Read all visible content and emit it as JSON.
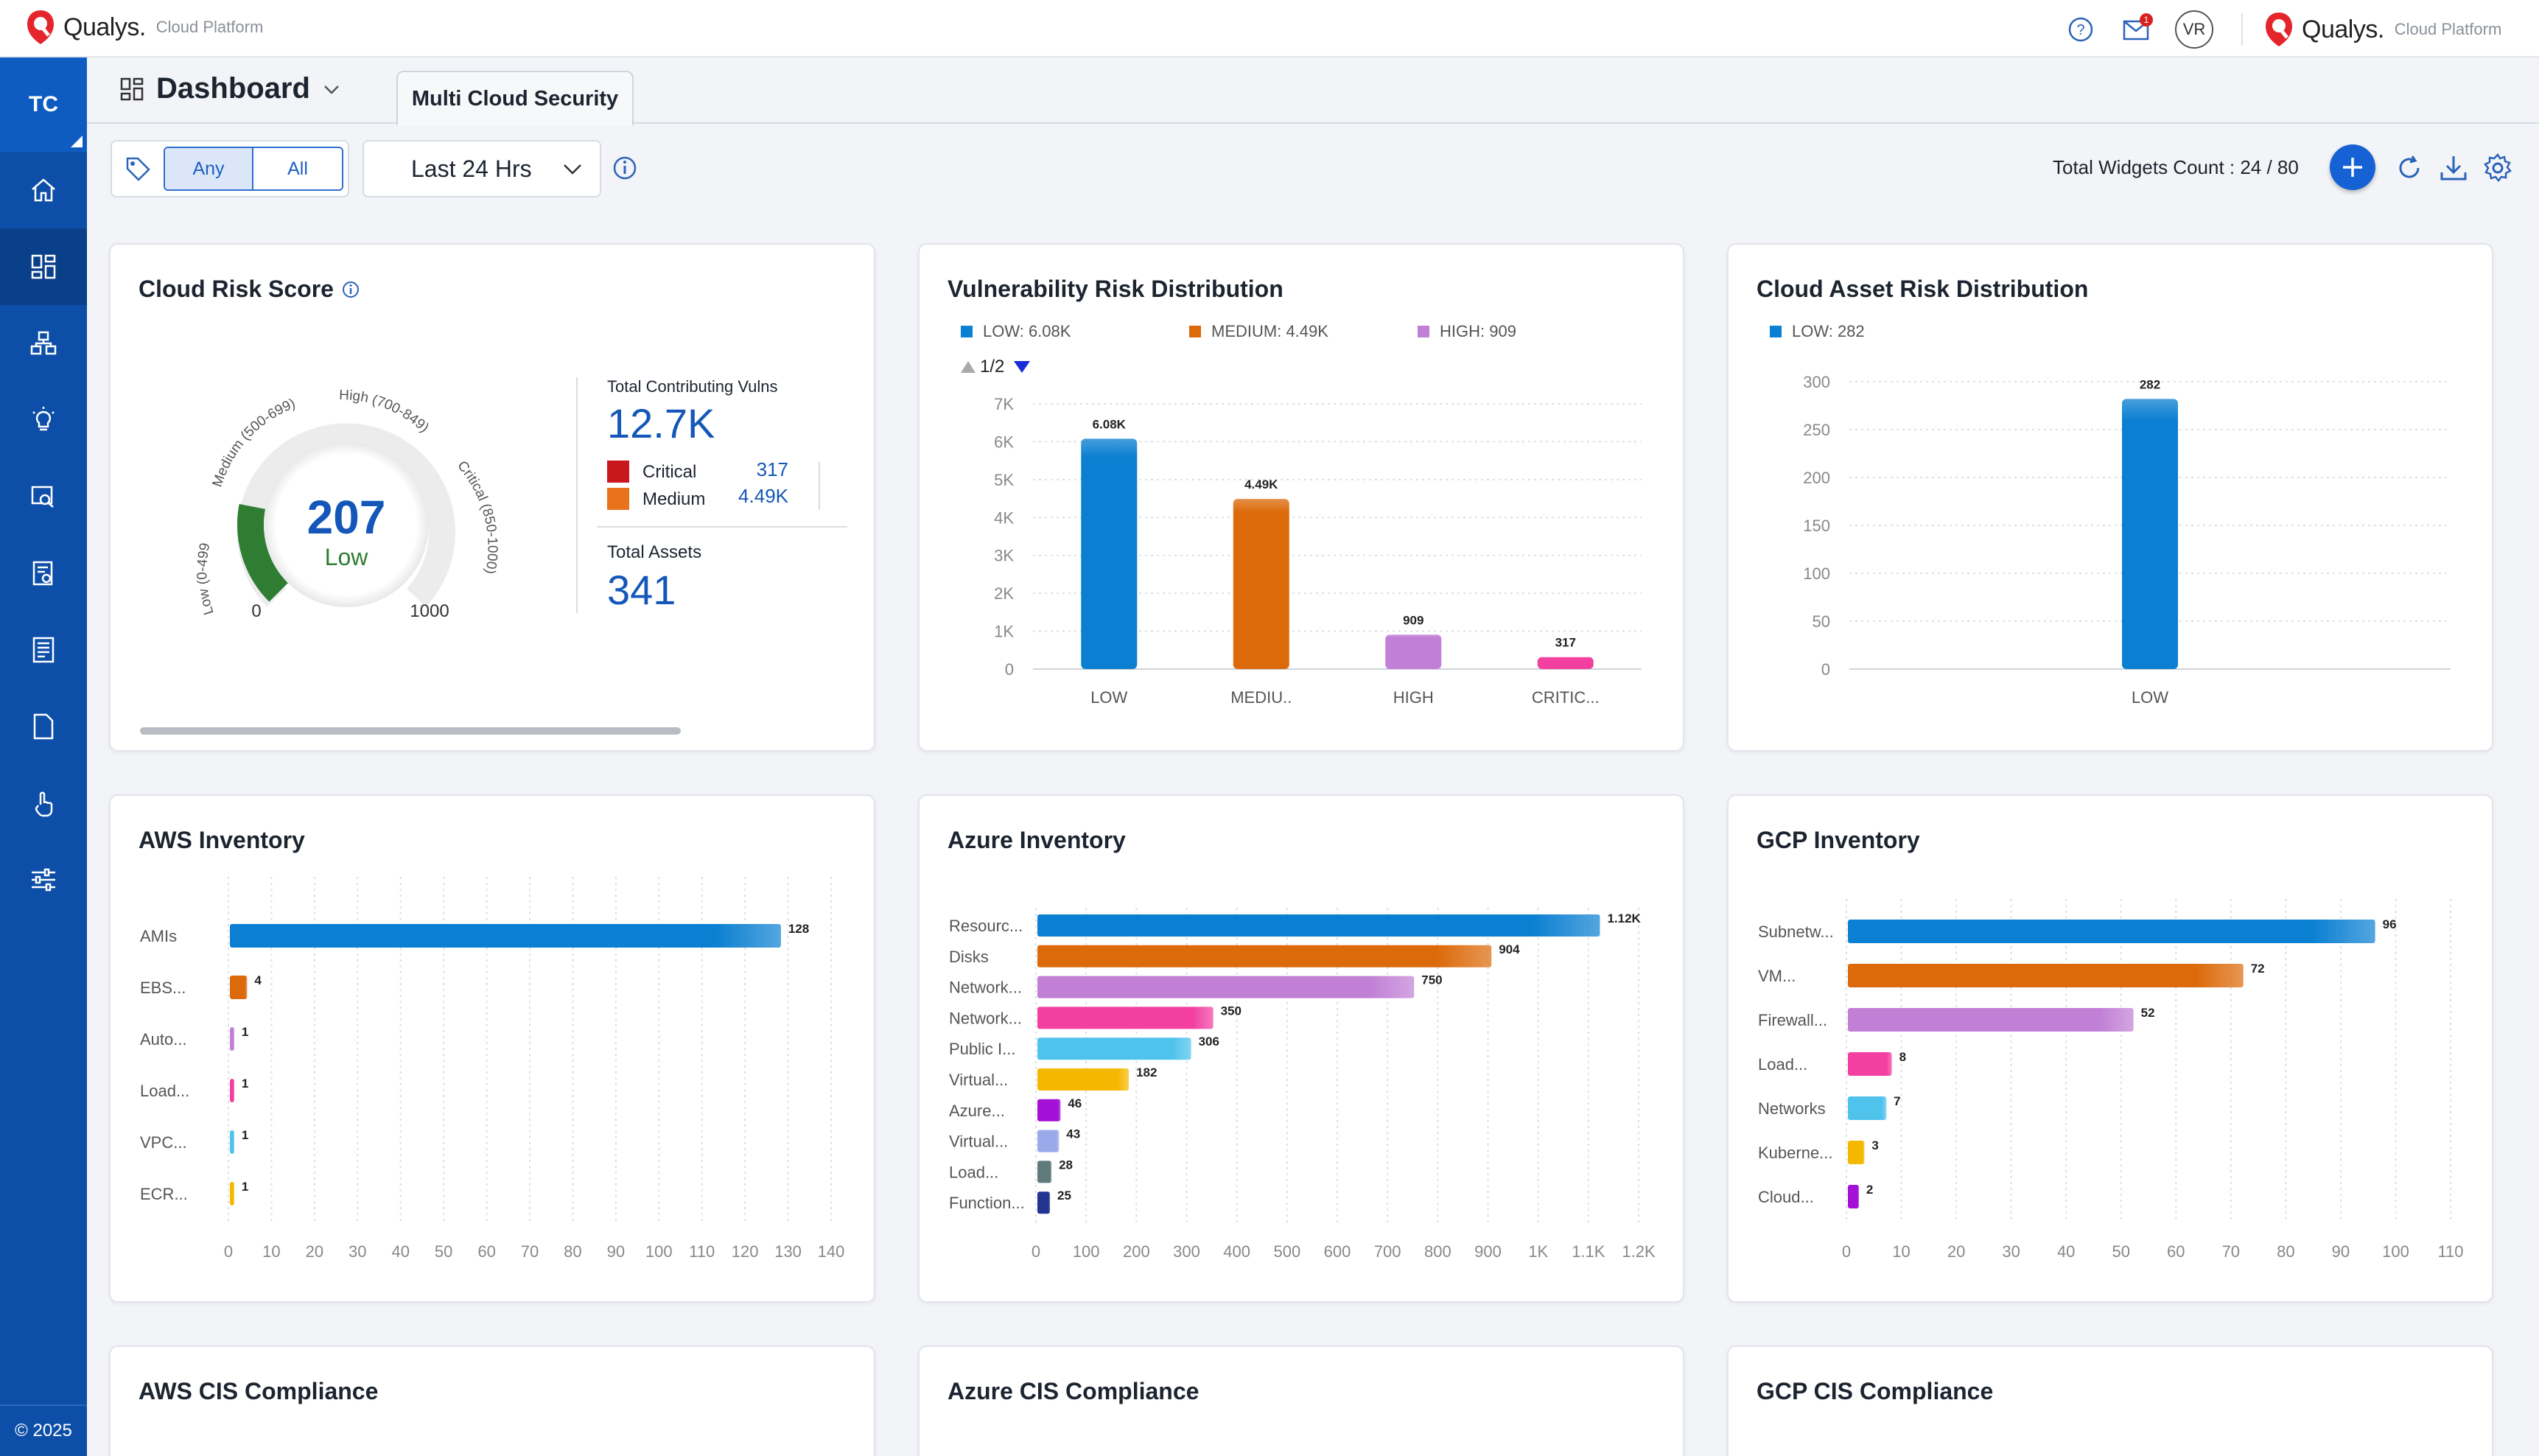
{
  "brand": {
    "name": "Qualys.",
    "sub": "Cloud Platform"
  },
  "topbar": {
    "user_initials": "VR",
    "mail_badge": "1"
  },
  "sidebar": {
    "org": "TC",
    "items": [
      "home-icon",
      "dashboard-icon",
      "assets-icon",
      "insights-icon",
      "search-report-icon",
      "policy-icon",
      "list-icon",
      "document-icon",
      "touch-icon",
      "settings-sliders-icon"
    ],
    "footer": "© 2025"
  },
  "header": {
    "title": "Dashboard",
    "tab": "Multi Cloud Security"
  },
  "filters": {
    "any": "Any",
    "all": "All",
    "time": "Last 24 Hrs"
  },
  "widgets_count": "Total Widgets Count : 24 / 80",
  "colors": {
    "low": "#0b7fd1",
    "medium": "#dc6a0b",
    "high": "#c17fd6",
    "critical": "#f23fa0",
    "pink": "#f23fa0",
    "cyan": "#4fc3ec",
    "yellow": "#f5b800",
    "purple": "#a310d6",
    "lavender": "#9aa9ea",
    "slate": "#5f7a7a",
    "navy": "#23338f",
    "accent": "#1662d4"
  },
  "risk_score": {
    "title": "Cloud Risk Score",
    "score": "207",
    "rating": "Low",
    "gauge_min": "0",
    "gauge_max": "1000",
    "score_value": 207,
    "ranges": [
      "Low (0-499)",
      "Medium (500-699)",
      "High (700-849)",
      "Critical (850-1000)"
    ],
    "vulns_label": "Total Contributing Vulns",
    "vulns_total": "12.7K",
    "critical_label": "Critical",
    "critical_value": "317",
    "medium_label": "Medium",
    "medium_value": "4.49K",
    "assets_label": "Total Assets",
    "assets_total": "341"
  },
  "chart_data": [
    {
      "id": "vuln",
      "type": "bar",
      "title": "Vulnerability Risk Distribution",
      "legend": [
        "LOW: 6.08K",
        "MEDIUM: 4.49K",
        "HIGH: 909"
      ],
      "pager": "1/2",
      "categories": [
        "LOW",
        "MEDIU..",
        "HIGH",
        "CRITIC..."
      ],
      "values": [
        6080,
        4490,
        909,
        317
      ],
      "labels": [
        "6.08K",
        "4.49K",
        "909",
        "317"
      ],
      "ylim": [
        0,
        7000
      ],
      "yticks": [
        "0",
        "1K",
        "2K",
        "3K",
        "4K",
        "5K",
        "6K",
        "7K"
      ],
      "colors": [
        "#0b7fd1",
        "#dc6a0b",
        "#c17fd6",
        "#f23fa0"
      ]
    },
    {
      "id": "asset",
      "type": "bar",
      "title": "Cloud Asset Risk Distribution",
      "legend": [
        "LOW: 282"
      ],
      "categories": [
        "LOW"
      ],
      "values": [
        282
      ],
      "labels": [
        "282"
      ],
      "ylim": [
        0,
        300
      ],
      "yticks": [
        "0",
        "50",
        "100",
        "150",
        "200",
        "250",
        "300"
      ],
      "colors": [
        "#0b7fd1"
      ]
    },
    {
      "id": "aws",
      "type": "bar",
      "orientation": "horizontal",
      "title": "AWS Inventory",
      "categories": [
        "AMIs",
        "EBS...",
        "Auto...",
        "Load...",
        "VPC...",
        "ECR..."
      ],
      "values": [
        128,
        4,
        1,
        1,
        1,
        1
      ],
      "labels": [
        "128",
        "4",
        "1",
        "1",
        "1",
        "1"
      ],
      "xlim": [
        0,
        140
      ],
      "xticks": [
        "0",
        "10",
        "20",
        "30",
        "40",
        "50",
        "60",
        "70",
        "80",
        "90",
        "100",
        "110",
        "120",
        "130",
        "140"
      ],
      "colors": [
        "#0b7fd1",
        "#dc6a0b",
        "#c17fd6",
        "#f23fa0",
        "#4fc3ec",
        "#f5b800"
      ]
    },
    {
      "id": "azure",
      "type": "bar",
      "orientation": "horizontal",
      "title": "Azure Inventory",
      "categories": [
        "Resourc...",
        "Disks",
        "Network...",
        "Network...",
        "Public I...",
        "Virtual...",
        "Azure...",
        "Virtual...",
        "Load...",
        "Function..."
      ],
      "values": [
        1120,
        904,
        750,
        350,
        306,
        182,
        46,
        43,
        28,
        25
      ],
      "labels": [
        "1.12K",
        "904",
        "750",
        "350",
        "306",
        "182",
        "46",
        "43",
        "28",
        "25"
      ],
      "xlim": [
        0,
        1200
      ],
      "xticks": [
        "0",
        "100",
        "200",
        "300",
        "400",
        "500",
        "600",
        "700",
        "800",
        "900",
        "1K",
        "1.1K",
        "1.2K"
      ],
      "colors": [
        "#0b7fd1",
        "#dc6a0b",
        "#c17fd6",
        "#f23fa0",
        "#4fc3ec",
        "#f5b800",
        "#a310d6",
        "#9aa9ea",
        "#5f7a7a",
        "#23338f"
      ]
    },
    {
      "id": "gcp",
      "type": "bar",
      "orientation": "horizontal",
      "title": "GCP Inventory",
      "categories": [
        "Subnetw...",
        "VM...",
        "Firewall...",
        "Load...",
        "Networks",
        "Kuberne...",
        "Cloud..."
      ],
      "values": [
        96,
        72,
        52,
        8,
        7,
        3,
        2
      ],
      "labels": [
        "96",
        "72",
        "52",
        "8",
        "7",
        "3",
        "2"
      ],
      "xlim": [
        0,
        110
      ],
      "xticks": [
        "0",
        "10",
        "20",
        "30",
        "40",
        "50",
        "60",
        "70",
        "80",
        "90",
        "100",
        "110"
      ],
      "colors": [
        "#0b7fd1",
        "#dc6a0b",
        "#c17fd6",
        "#f23fa0",
        "#4fc3ec",
        "#f5b800",
        "#a310d6"
      ]
    }
  ],
  "compliance": {
    "aws": "AWS CIS Compliance",
    "azure": "Azure CIS Compliance",
    "gcp": "GCP CIS Compliance"
  }
}
